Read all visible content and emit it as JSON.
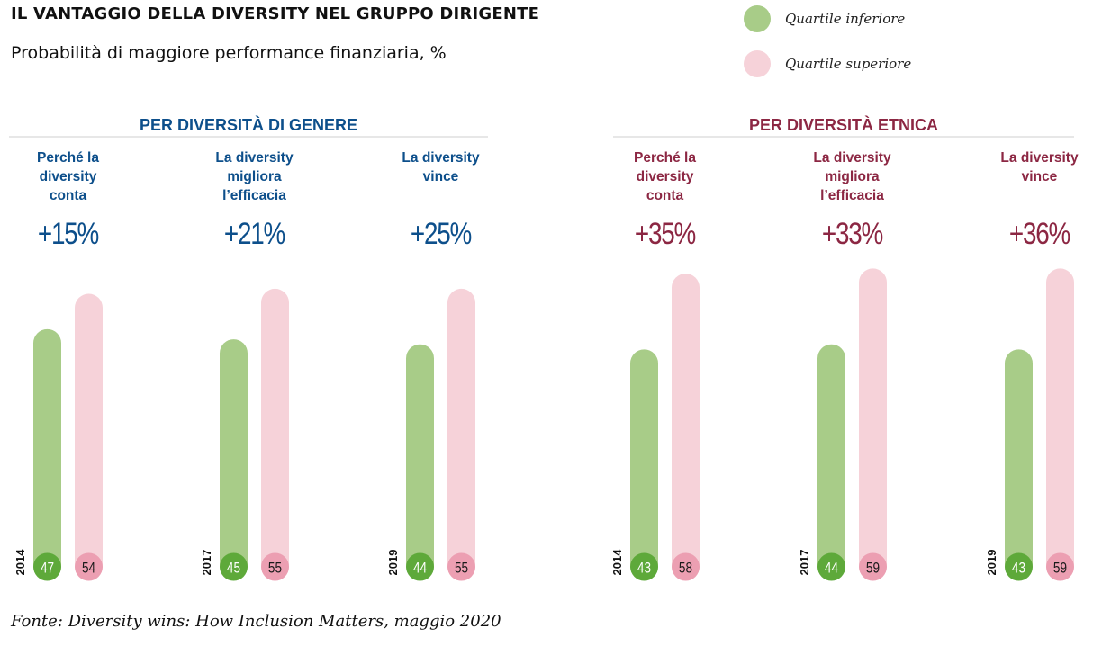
{
  "title": "IL VANTAGGIO DELLA DIVERSITY NEL GRUPPO DIRIGENTE",
  "subtitle": "Probabilità di maggiore performance finanziaria, %",
  "legend": [
    {
      "label": "Quartile inferiore",
      "color": "#a8cc88"
    },
    {
      "label": "Quartile superiore",
      "color": "#f6d2d9"
    }
  ],
  "source": "Fonte: Diversity wins: How Inclusion Matters, maggio 2020",
  "colors": {
    "lower_bar": "#a8cc88",
    "lower_badge": "#5ea93a",
    "upper_bar": "#f6d2d9",
    "upper_badge": "#ec9fb2",
    "gender_accent": "#0d4f8b",
    "ethnic_accent": "#8c2743"
  },
  "chart_data": {
    "type": "bar",
    "series_names": [
      "Quartile inferiore",
      "Quartile superiore"
    ],
    "panels": [
      {
        "heading": "PER DIVERSITÀ DI GENERE",
        "accent": "gender",
        "groups": [
          {
            "label": [
              "Perché la",
              "diversity",
              "conta"
            ],
            "delta": "+15%",
            "year": "2014",
            "values": [
              47,
              54
            ]
          },
          {
            "label": [
              "La diversity",
              "migliora",
              "l’efficacia"
            ],
            "delta": "+21%",
            "year": "2017",
            "values": [
              45,
              55
            ]
          },
          {
            "label": [
              "La diversity",
              "vince"
            ],
            "delta": "+25%",
            "year": "2019",
            "values": [
              44,
              55
            ]
          }
        ]
      },
      {
        "heading": "PER DIVERSITÀ ETNICA",
        "accent": "ethnic",
        "groups": [
          {
            "label": [
              "Perché la",
              "diversity",
              "conta"
            ],
            "delta": "+35%",
            "year": "2014",
            "values": [
              43,
              58
            ]
          },
          {
            "label": [
              "La diversity",
              "migliora",
              "l’efficacia"
            ],
            "delta": "+33%",
            "year": "2017",
            "values": [
              44,
              59
            ]
          },
          {
            "label": [
              "La diversity",
              "vince"
            ],
            "delta": "+36%",
            "year": "2019",
            "values": [
              43,
              59
            ]
          }
        ]
      }
    ]
  }
}
